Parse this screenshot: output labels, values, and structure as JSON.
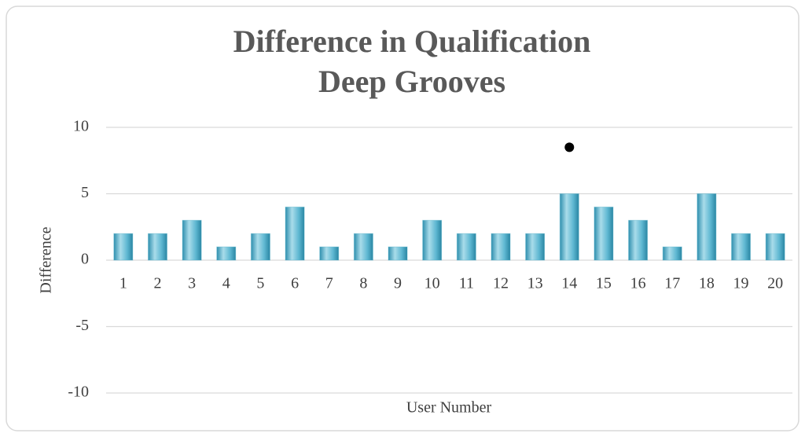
{
  "chart_data": {
    "type": "bar",
    "title": [
      "Difference in Qualification",
      "Deep Grooves"
    ],
    "x_label": "User Number",
    "y_label": "Difference",
    "categories": [
      "1",
      "2",
      "3",
      "4",
      "5",
      "6",
      "7",
      "8",
      "9",
      "10",
      "11",
      "12",
      "13",
      "14",
      "15",
      "16",
      "17",
      "18",
      "19",
      "20"
    ],
    "series": [
      {
        "type": "bar",
        "color": "#4bacc6",
        "values": [
          2,
          2,
          3,
          1,
          2,
          4,
          1,
          2,
          1,
          3,
          2,
          2,
          2,
          5,
          4,
          3,
          1,
          5,
          2,
          2
        ]
      },
      {
        "type": "scatter",
        "color": "#000000",
        "values": [
          null,
          null,
          null,
          null,
          null,
          null,
          null,
          null,
          null,
          null,
          null,
          null,
          null,
          8.5,
          null,
          null,
          null,
          null,
          null,
          null
        ]
      }
    ],
    "ylim": [
      -10,
      10
    ],
    "yticks": [
      -10,
      -5,
      0,
      5,
      10
    ],
    "grid": true
  }
}
